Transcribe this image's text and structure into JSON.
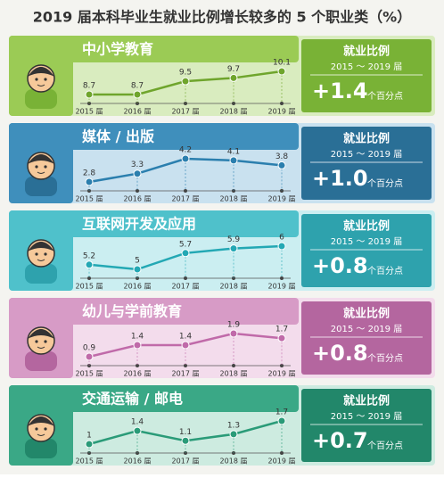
{
  "title": "2019 届本科毕业生就业比例增长较多的 5 个职业类（%）",
  "chart_data": [
    {
      "type": "line",
      "title": "中小学教育",
      "categories": [
        "2015 届",
        "2016 届",
        "2017 届",
        "2018 届",
        "2019 届"
      ],
      "values": [
        8.7,
        8.7,
        9.5,
        9.7,
        10.1
      ],
      "color": "#6fa52c",
      "panel_color": "#9bcb55",
      "box_color": "#79b236",
      "area_color": "#d9ecbf",
      "summary": {
        "label": "就业比例",
        "period": "2015 ～ 2019 届",
        "change": "+1.4",
        "unit": "个百分点"
      }
    },
    {
      "type": "line",
      "title": "媒体 / 出版",
      "categories": [
        "2015 届",
        "2016 届",
        "2017 届",
        "2018 届",
        "2019 届"
      ],
      "values": [
        2.8,
        3.3,
        4.2,
        4.1,
        3.8
      ],
      "color": "#2b7fae",
      "panel_color": "#3f8fbc",
      "box_color": "#2a6f96",
      "area_color": "#c9e1ef",
      "summary": {
        "label": "就业比例",
        "period": "2015 ～ 2019 届",
        "change": "+1.0",
        "unit": "个百分点"
      }
    },
    {
      "type": "line",
      "title": "互联网开发及应用",
      "categories": [
        "2015 届",
        "2016 届",
        "2017 届",
        "2018 届",
        "2019 届"
      ],
      "values": [
        5.2,
        5.0,
        5.7,
        5.9,
        6.0
      ],
      "color": "#23a8b4",
      "panel_color": "#4fc1cb",
      "box_color": "#2ea2ad",
      "area_color": "#cbeef1",
      "summary": {
        "label": "就业比例",
        "period": "2015 ～ 2019 届",
        "change": "+0.8",
        "unit": "个百分点"
      }
    },
    {
      "type": "line",
      "title": "幼儿与学前教育",
      "categories": [
        "2015 届",
        "2016 届",
        "2017 届",
        "2018 届",
        "2019 届"
      ],
      "values": [
        0.9,
        1.4,
        1.4,
        1.9,
        1.7
      ],
      "color": "#c06aa9",
      "panel_color": "#d79bc6",
      "box_color": "#b4669f",
      "area_color": "#f3dcec",
      "summary": {
        "label": "就业比例",
        "period": "2015 ～ 2019 届",
        "change": "+0.8",
        "unit": "个百分点"
      }
    },
    {
      "type": "line",
      "title": "交通运输 / 邮电",
      "categories": [
        "2015 届",
        "2016 届",
        "2017 届",
        "2018 届",
        "2019 届"
      ],
      "values": [
        1.0,
        1.4,
        1.1,
        1.3,
        1.7
      ],
      "color": "#2a9b78",
      "panel_color": "#3aa886",
      "box_color": "#22876a",
      "area_color": "#cdebe0",
      "summary": {
        "label": "就业比例",
        "period": "2015 ～ 2019 届",
        "change": "+0.7",
        "unit": "个百分点"
      }
    }
  ]
}
